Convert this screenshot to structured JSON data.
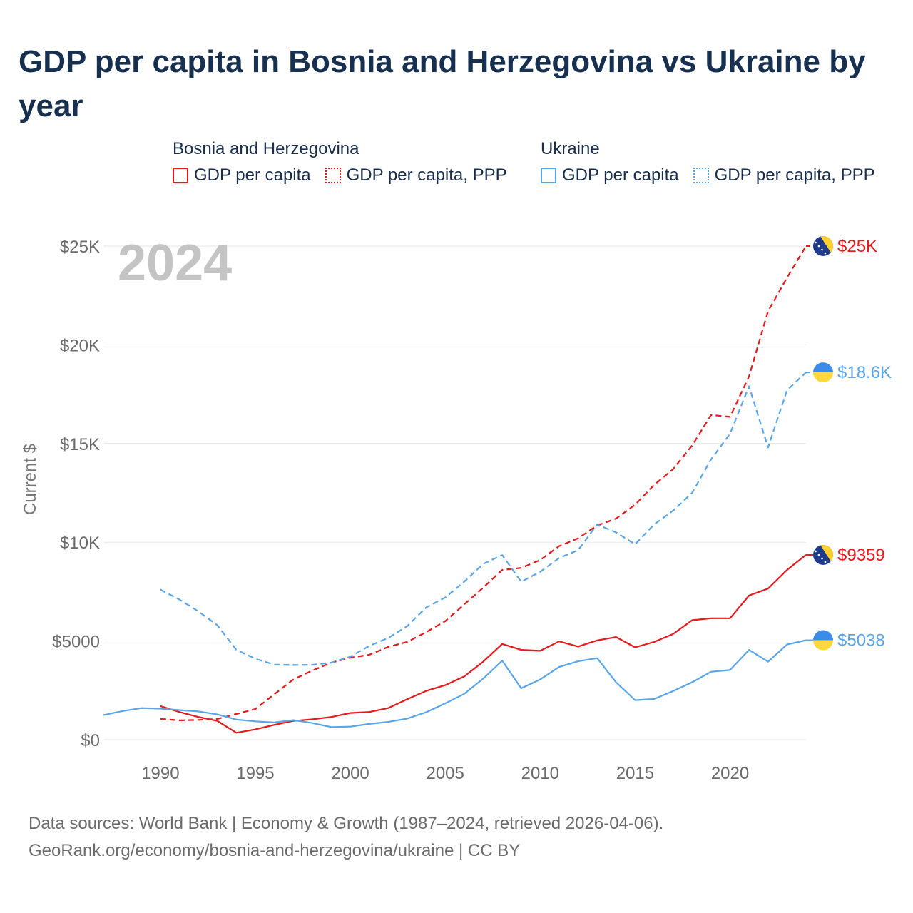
{
  "chart_data": {
    "type": "line",
    "title": "GDP per capita in Bosnia and Herzegovina vs Ukraine by year",
    "ylabel": "Current $",
    "xlabel": "",
    "xlim": [
      1987,
      2024
    ],
    "ylim": [
      0,
      25000
    ],
    "year_label": "2024",
    "x_ticks": [
      1990,
      1995,
      2000,
      2005,
      2010,
      2015,
      2020
    ],
    "x_tick_labels": [
      "1990",
      "1995",
      "2000",
      "2005",
      "2010",
      "2015",
      "2020"
    ],
    "y_ticks": [
      0,
      5000,
      10000,
      15000,
      20000,
      25000
    ],
    "y_tick_labels": [
      "$0",
      "$5000",
      "$10K",
      "$15K",
      "$20K",
      "$25K"
    ],
    "legend_groups": [
      {
        "name": "Bosnia and Herzegovina",
        "items": [
          "GDP per capita",
          "GDP per capita, PPP"
        ]
      },
      {
        "name": "Ukraine",
        "items": [
          "GDP per capita",
          "GDP per capita, PPP"
        ]
      }
    ],
    "series": [
      {
        "id": "bih-gdp",
        "name": "Bosnia and Herzegovina — GDP per capita",
        "color": "#e41a1c",
        "dash": "solid",
        "end_label": "$9359",
        "x": [
          1990,
          1991,
          1992,
          1993,
          1994,
          1995,
          1996,
          1997,
          1998,
          1999,
          2000,
          2001,
          2002,
          2003,
          2004,
          2005,
          2006,
          2007,
          2008,
          2009,
          2010,
          2011,
          2012,
          2013,
          2014,
          2015,
          2016,
          2017,
          2018,
          2019,
          2020,
          2021,
          2022,
          2023,
          2024
        ],
        "values": [
          1700,
          1400,
          1150,
          950,
          350,
          520,
          750,
          950,
          1030,
          1150,
          1350,
          1400,
          1600,
          2050,
          2470,
          2760,
          3200,
          3950,
          4850,
          4550,
          4500,
          4980,
          4720,
          5030,
          5200,
          4680,
          4950,
          5350,
          6050,
          6150,
          6150,
          7300,
          7650,
          8600,
          9359
        ]
      },
      {
        "id": "bih-ppp",
        "name": "Bosnia and Herzegovina — GDP per capita, PPP",
        "color": "#e41a1c",
        "dash": "dashed",
        "end_label": "$25K",
        "x": [
          1990,
          1991,
          1992,
          1993,
          1994,
          1995,
          1996,
          1997,
          1998,
          1999,
          2000,
          2001,
          2002,
          2003,
          2004,
          2005,
          2006,
          2007,
          2008,
          2009,
          2010,
          2011,
          2012,
          2013,
          2014,
          2015,
          2016,
          2017,
          2018,
          2019,
          2020,
          2021,
          2022,
          2023,
          2024
        ],
        "values": [
          1050,
          980,
          1000,
          1050,
          1300,
          1550,
          2300,
          3050,
          3500,
          3900,
          4150,
          4300,
          4700,
          4950,
          5450,
          6000,
          6850,
          7700,
          8600,
          8700,
          9100,
          9800,
          10200,
          10850,
          11200,
          11900,
          12900,
          13700,
          14900,
          16450,
          16350,
          18400,
          21700,
          23400,
          25000
        ]
      },
      {
        "id": "ukr-gdp",
        "name": "Ukraine — GDP per capita",
        "color": "#5aa5e6",
        "dash": "solid",
        "end_label": "$5038",
        "x": [
          1987,
          1988,
          1989,
          1990,
          1991,
          1992,
          1993,
          1994,
          1995,
          1996,
          1997,
          1998,
          1999,
          2000,
          2001,
          2002,
          2003,
          2004,
          2005,
          2006,
          2007,
          2008,
          2009,
          2010,
          2011,
          2012,
          2013,
          2014,
          2015,
          2016,
          2017,
          2018,
          2019,
          2020,
          2021,
          2022,
          2023,
          2024
        ],
        "values": [
          1250,
          1450,
          1600,
          1570,
          1500,
          1430,
          1280,
          1020,
          930,
          870,
          990,
          840,
          640,
          660,
          800,
          900,
          1070,
          1390,
          1840,
          2320,
          3090,
          4000,
          2600,
          3050,
          3680,
          3970,
          4130,
          2900,
          2000,
          2060,
          2460,
          2910,
          3440,
          3530,
          4550,
          3950,
          4820,
          5038
        ]
      },
      {
        "id": "ukr-ppp",
        "name": "Ukraine — GDP per capita, PPP",
        "color": "#5aa5e6",
        "dash": "dashed",
        "end_label": "$18.6K",
        "x": [
          1990,
          1991,
          1992,
          1993,
          1994,
          1995,
          1996,
          1997,
          1998,
          1999,
          2000,
          2001,
          2002,
          2003,
          2004,
          2005,
          2006,
          2007,
          2008,
          2009,
          2010,
          2011,
          2012,
          2013,
          2014,
          2015,
          2016,
          2017,
          2018,
          2019,
          2020,
          2021,
          2022,
          2023,
          2024
        ],
        "values": [
          7600,
          7100,
          6500,
          5800,
          4550,
          4100,
          3800,
          3780,
          3790,
          3900,
          4200,
          4750,
          5150,
          5750,
          6700,
          7200,
          8000,
          8900,
          9350,
          8000,
          8500,
          9200,
          9600,
          10900,
          10500,
          9900,
          10900,
          11600,
          12500,
          14200,
          15500,
          17900,
          14800,
          17700,
          18600
        ]
      }
    ],
    "end_markers": [
      {
        "series": "bih-ppp",
        "flag": "bosnia-flag-icon"
      },
      {
        "series": "ukr-ppp",
        "flag": "ukraine-flag-icon"
      },
      {
        "series": "bih-gdp",
        "flag": "bosnia-flag-icon"
      },
      {
        "series": "ukr-gdp",
        "flag": "ukraine-flag-icon"
      }
    ]
  },
  "legend": {
    "bih_group": "Bosnia and Herzegovina",
    "ukr_group": "Ukraine",
    "bih_gdp": "GDP per capita",
    "bih_ppp": "GDP per capita, PPP",
    "ukr_gdp": "GDP per capita",
    "ukr_ppp": "GDP per capita, PPP"
  },
  "colors": {
    "bih": "#e41a1c",
    "ukr": "#5aa5e6",
    "grid": "#e6e6e6",
    "year_label": "#c4c4c4"
  },
  "source": {
    "line1": "Data sources: World Bank | Economy & Growth (1987–2024, retrieved 2026-04-06).",
    "line2": "GeoRank.org/economy/bosnia-and-herzegovina/ukraine | CC BY"
  }
}
